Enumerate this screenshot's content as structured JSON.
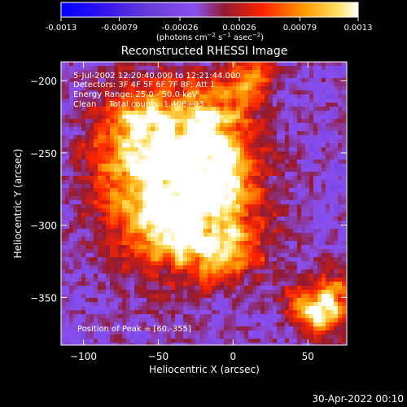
{
  "colorbar": {
    "tick_labels": [
      "-0.0013",
      "-0.00079",
      "-0.00026",
      "0.00026",
      "0.00079",
      "0.0013"
    ],
    "tick_values": [
      -0.0013,
      -0.00079,
      -0.00026,
      0.00026,
      0.00079,
      0.0013
    ],
    "range": [
      -0.0013,
      0.0013
    ],
    "palette": [
      "#0000ff",
      "#5a3cc8",
      "#9a52ff",
      "#8a1e3c",
      "#ff3000",
      "#ffa800",
      "#ffffff"
    ]
  },
  "chart_data": {
    "type": "heatmap",
    "title": "Reconstructed RHESSI Image",
    "xlabel": "Heliocentric X (arcsec)",
    "ylabel": "Heliocentric Y (arcsec)",
    "xlim": [
      -115,
      76
    ],
    "ylim": [
      -383,
      -187
    ],
    "x_ticks": [
      -100,
      -50,
      0,
      50
    ],
    "x_tick_labels": [
      "−100",
      "−50",
      "0",
      "50"
    ],
    "y_ticks": [
      -200,
      -250,
      -300,
      -350
    ],
    "y_tick_labels": [
      "−200",
      "−250",
      "−300",
      "−350"
    ],
    "annotations": [
      "5-Jul-2002 12:20:40.000 to 12:21:44.000",
      "Detectors: 3F 4F 5F 6F 7F 8F; Att 1",
      "Energy Range: 25.0 - 50.0 keV",
      "Clean     Total counts: 1.40E+03"
    ],
    "peak_label": "Position of Peak = [60,-355]",
    "peak_position": [
      60,
      -355
    ],
    "intensity_unit": "photons cm⁻² s⁻¹ asec⁻²",
    "colorbar_range": [
      -0.0013,
      0.0013
    ],
    "sources": [
      {
        "x": -50,
        "y": -265,
        "intensity": 0.0013
      },
      {
        "x": -20,
        "y": -245,
        "intensity": 0.00105
      },
      {
        "x": 60,
        "y": -355,
        "intensity": 0.0013
      },
      {
        "x": 15,
        "y": -195,
        "intensity": 0.0008
      }
    ]
  },
  "footer": {
    "timestamp": "30-Apr-2022 00:10"
  }
}
